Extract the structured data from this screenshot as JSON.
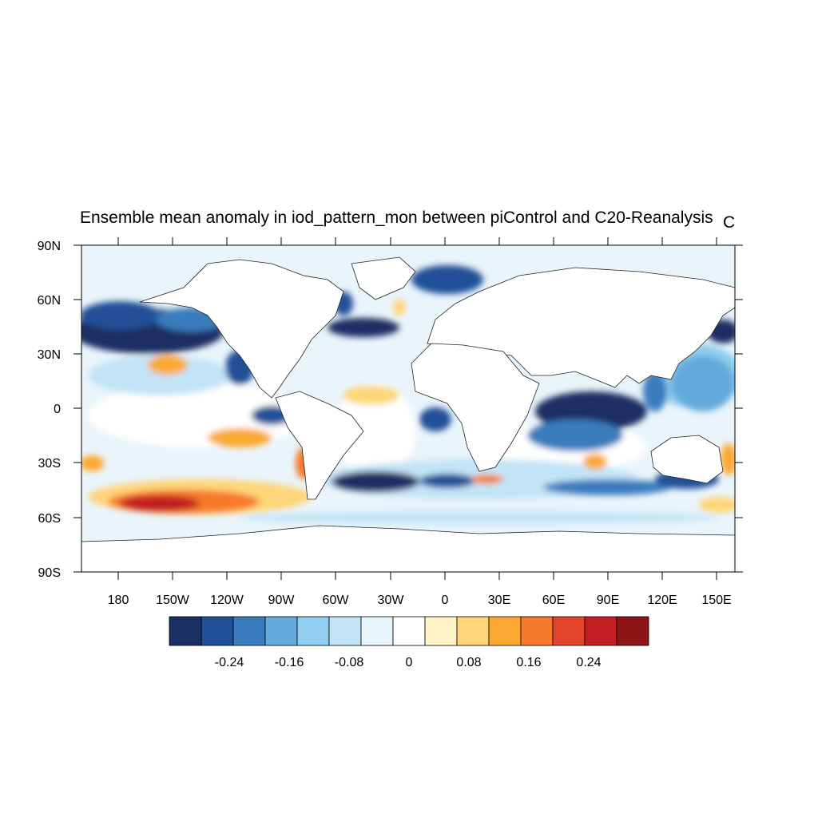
{
  "title": "Ensemble mean anomaly in iod_pattern_mon between piControl and C20-Reanalysis",
  "units": "C",
  "lat_labels": [
    "90N",
    "60N",
    "30N",
    "0",
    "30S",
    "60S",
    "90S"
  ],
  "lon_labels": [
    "180",
    "150W",
    "120W",
    "90W",
    "60W",
    "30W",
    "0",
    "30E",
    "60E",
    "90E",
    "120E",
    "150E"
  ],
  "colorbar": {
    "colors": [
      "#1c2f63",
      "#204f98",
      "#3a7bbd",
      "#64aadc",
      "#90cdef",
      "#c3e4f6",
      "#e6f4fb",
      "#ffffff",
      "#fff3c7",
      "#fed578",
      "#fca933",
      "#f67a2b",
      "#e2452b",
      "#c31f22",
      "#8e1517"
    ],
    "tick_labels": [
      "-0.24",
      "-0.16",
      "-0.08",
      "0",
      "0.08",
      "0.16",
      "0.24"
    ]
  },
  "colors": {
    "land_outline": "#222222",
    "frame": "#000000"
  }
}
